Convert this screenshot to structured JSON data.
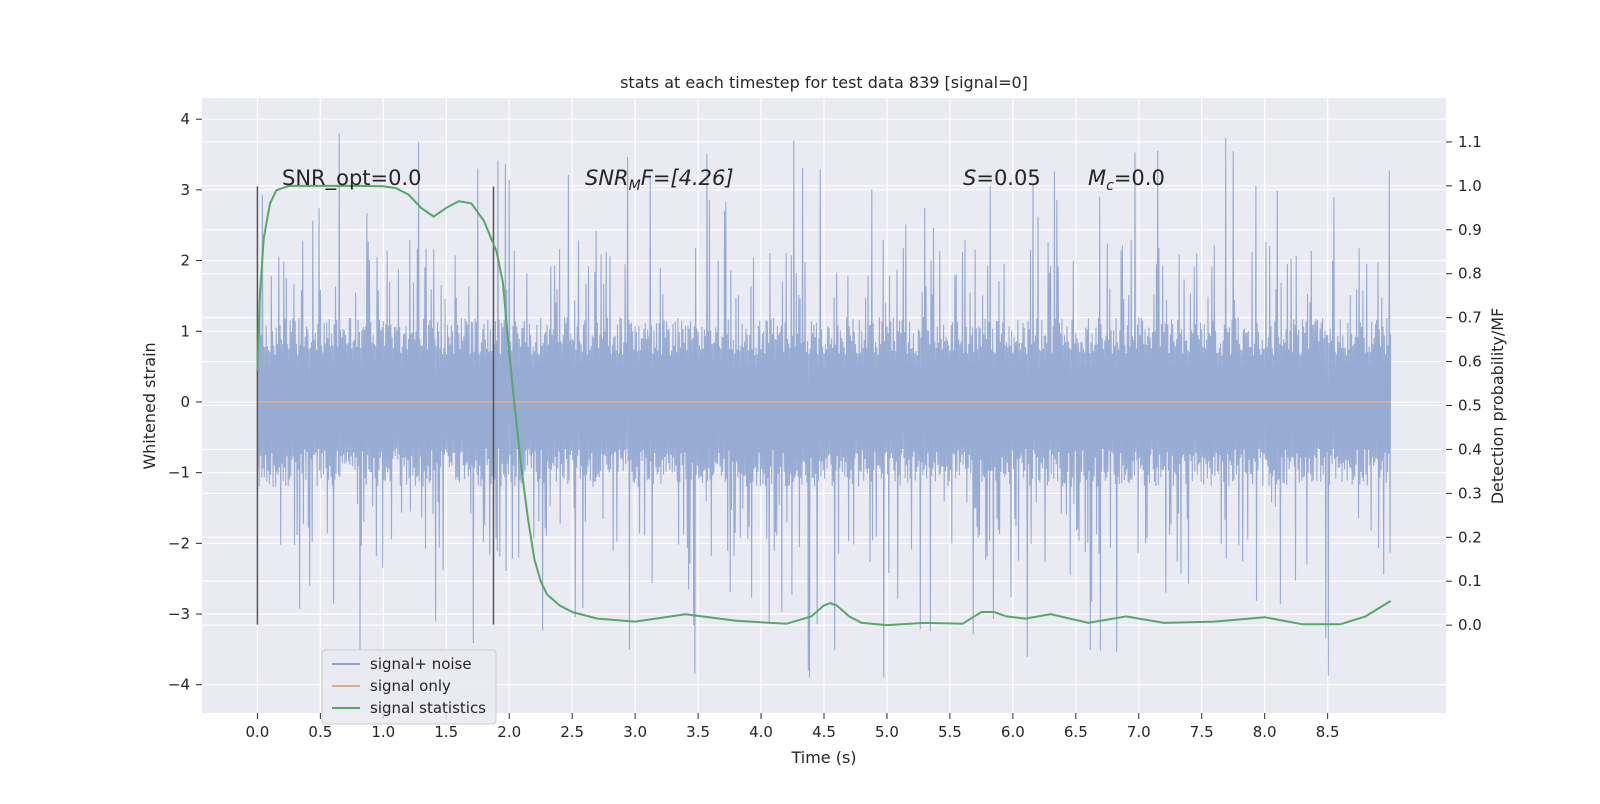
{
  "chart_data": {
    "type": "line",
    "title": "stats at each timestep for test data 839 [signal=0]",
    "xlabel": "Time (s)",
    "ylabel": "Whitened strain",
    "ylabel_right": "Detection probability/MF",
    "xlim": [
      -0.44,
      9.44
    ],
    "ylim": [
      -4.4,
      4.3
    ],
    "ylim_right": [
      -0.2,
      1.2
    ],
    "x_ticks": [
      0.0,
      0.5,
      1.0,
      1.5,
      2.0,
      2.5,
      3.0,
      3.5,
      4.0,
      4.5,
      5.0,
      5.5,
      6.0,
      6.5,
      7.0,
      7.5,
      8.0,
      8.5
    ],
    "x_tick_labels": [
      "0.0",
      "0.5",
      "1.0",
      "1.5",
      "2.0",
      "2.5",
      "3.0",
      "3.5",
      "4.0",
      "4.5",
      "5.0",
      "5.5",
      "6.0",
      "6.5",
      "7.0",
      "7.5",
      "8.0",
      "8.5"
    ],
    "y_ticks": [
      -4,
      -3,
      -2,
      -1,
      0,
      1,
      2,
      3,
      4
    ],
    "y_tick_labels": [
      "−4",
      "−3",
      "−2",
      "−1",
      "0",
      "1",
      "2",
      "3",
      "4"
    ],
    "y_right_ticks": [
      0.0,
      0.1,
      0.2,
      0.3,
      0.4,
      0.5,
      0.6,
      0.7,
      0.8,
      0.9,
      1.0,
      1.1
    ],
    "y_right_tick_labels": [
      "0.0",
      "0.1",
      "0.2",
      "0.3",
      "0.4",
      "0.5",
      "0.6",
      "0.7",
      "0.8",
      "0.9",
      "1.0",
      "1.1"
    ],
    "grid": true,
    "legend_position": "lower-left",
    "annotations": {
      "snr_opt": "SNR_opt=0.0",
      "snr_mf_base": "SNR",
      "snr_mf_sub": "M",
      "snr_mf_rest": "F=[4.26]",
      "s_italic": "S",
      "s_rest": "=0.05",
      "mc_italic": "M",
      "mc_sub": "c",
      "mc_rest": "=0.0"
    },
    "vertical_markers_x": [
      0.0,
      1.875
    ],
    "series": [
      {
        "name": "signal+ noise",
        "color": "#8fa4cf",
        "axis": "left",
        "description_of_shape": "noise band, mostly within ±1.2, spikes up to ±3.9",
        "x_range": [
          0.0,
          9.0
        ],
        "typical_amplitude": 1.2,
        "peak_max": 3.9,
        "peak_min": -4.0
      },
      {
        "name": "signal only",
        "color": "#e3a98a",
        "axis": "left",
        "x": [
          0.0,
          9.0
        ],
        "y": [
          0.0,
          0.0
        ]
      },
      {
        "name": "signal statistics",
        "color": "#55a868",
        "axis": "right",
        "x": [
          0.0,
          0.02,
          0.05,
          0.1,
          0.15,
          0.25,
          0.4,
          0.6,
          0.8,
          1.0,
          1.1,
          1.2,
          1.3,
          1.4,
          1.5,
          1.6,
          1.7,
          1.8,
          1.9,
          1.95,
          2.0,
          2.05,
          2.1,
          2.15,
          2.2,
          2.25,
          2.3,
          2.4,
          2.5,
          2.7,
          3.0,
          3.4,
          3.8,
          4.2,
          4.4,
          4.5,
          4.55,
          4.6,
          4.7,
          4.8,
          5.0,
          5.3,
          5.6,
          5.75,
          5.85,
          5.95,
          6.1,
          6.3,
          6.6,
          6.9,
          7.2,
          7.6,
          8.0,
          8.3,
          8.6,
          8.8,
          9.0
        ],
        "y": [
          0.58,
          0.75,
          0.88,
          0.96,
          0.99,
          1.0,
          1.0,
          1.0,
          1.0,
          0.999,
          0.995,
          0.98,
          0.95,
          0.93,
          0.95,
          0.965,
          0.96,
          0.92,
          0.85,
          0.78,
          0.62,
          0.48,
          0.35,
          0.24,
          0.15,
          0.1,
          0.07,
          0.045,
          0.03,
          0.015,
          0.008,
          0.025,
          0.01,
          0.003,
          0.02,
          0.045,
          0.05,
          0.045,
          0.02,
          0.005,
          0.0,
          0.005,
          0.003,
          0.03,
          0.03,
          0.02,
          0.015,
          0.025,
          0.005,
          0.02,
          0.005,
          0.008,
          0.018,
          0.002,
          0.002,
          0.02,
          0.055
        ]
      }
    ]
  }
}
